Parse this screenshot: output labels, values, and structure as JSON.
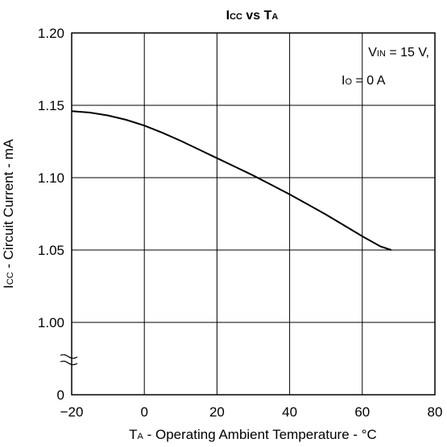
{
  "chart_data": {
    "type": "line",
    "title": {
      "main": "I",
      "sub1": "CC",
      "mid": " vs T",
      "sub2": "A"
    },
    "xlabel": {
      "main": "T",
      "sub": "A",
      "rest": " - Operating Ambient Temperature - °C"
    },
    "ylabel": {
      "main": "I",
      "sub": "CC",
      "rest": " - Circuit Current - mA"
    },
    "xlim": [
      -20,
      80
    ],
    "x_ticks": [
      -20,
      0,
      20,
      40,
      60,
      80
    ],
    "x_tick_labels": [
      "−20",
      "0",
      "20",
      "40",
      "60",
      "80"
    ],
    "y_ticks": [
      0,
      1.0,
      1.05,
      1.1,
      1.15,
      1.2
    ],
    "y_tick_labels": [
      "0",
      "1.00",
      "1.05",
      "1.10",
      "1.15",
      "1.20"
    ],
    "y_axis_break": true,
    "grid": true,
    "annotations": [
      {
        "id": "vin",
        "main": "V",
        "sub": "IN",
        "rest": " = 15 V,"
      },
      {
        "id": "io",
        "main": "I",
        "sub": "O",
        "rest": " = 0 A"
      }
    ],
    "series": [
      {
        "x": [
          -20,
          -15,
          -10,
          -5,
          0,
          5,
          10,
          15,
          20,
          25,
          30,
          35,
          40,
          45,
          50,
          55,
          60,
          65,
          68
        ],
        "y": [
          1.146,
          1.145,
          1.143,
          1.14,
          1.136,
          1.131,
          1.1255,
          1.1195,
          1.1135,
          1.1075,
          1.1015,
          1.095,
          1.0885,
          1.0815,
          1.0745,
          1.067,
          1.0595,
          1.0525,
          1.05
        ]
      }
    ]
  }
}
